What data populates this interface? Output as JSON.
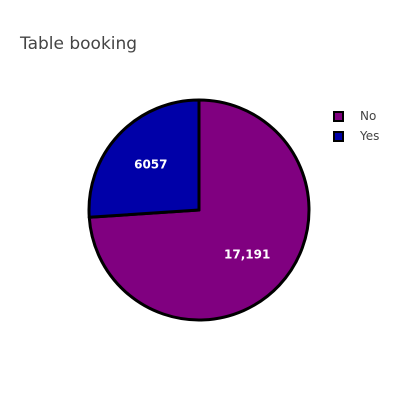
{
  "chart_data": {
    "type": "pie",
    "title": "Table booking",
    "categories": [
      "No",
      "Yes"
    ],
    "values": [
      17191,
      6057
    ],
    "value_labels": [
      "17,191",
      "6057"
    ],
    "colors": [
      "#800080",
      "#0000a8"
    ],
    "slice_border_color": "#000000",
    "direction": "clockwise",
    "start": "top",
    "legend_position": "top-right",
    "grid": false
  }
}
